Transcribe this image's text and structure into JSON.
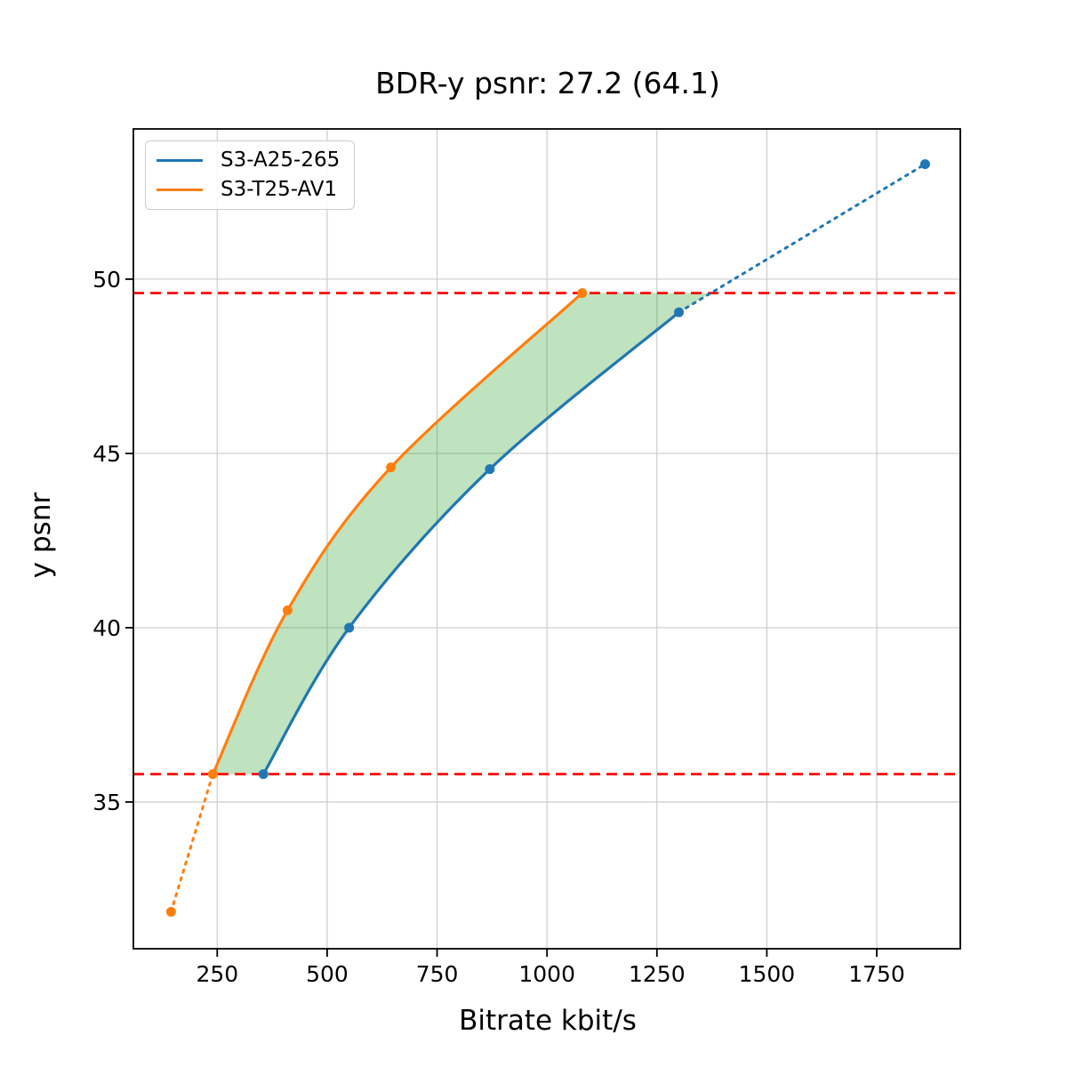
{
  "title": "BDR-y psnr: 27.2 (64.1)",
  "axes": {
    "xlabel": "Bitrate kbit/s",
    "ylabel": "y psnr"
  },
  "legend": {
    "position": "upper left",
    "items": [
      {
        "label": "S3-A25-265",
        "color": "#1f77b4"
      },
      {
        "label": "S3-T25-AV1",
        "color": "#ff7f0e"
      }
    ]
  },
  "chart_data": {
    "type": "line",
    "title": "BDR-y psnr: 27.2 (64.1)",
    "xlabel": "Bitrate kbit/s",
    "ylabel": "y psnr",
    "xlim": [
      59.3,
      1940
    ],
    "ylim": [
      30.79,
      54.31
    ],
    "xticks": [
      250,
      500,
      750,
      1000,
      1250,
      1500,
      1750
    ],
    "yticks": [
      35,
      40,
      45,
      50
    ],
    "grid": true,
    "grid_color": "#cccccc",
    "spine_color": "#000000",
    "legend_position": "upper left",
    "series": [
      {
        "name": "S3-A25-265",
        "color": "#1f77b4",
        "x": [
          355,
          550,
          870,
          1300,
          1860
        ],
        "y": [
          35.8,
          40.0,
          44.55,
          49.05,
          53.3
        ],
        "solid_idx": [
          0,
          3
        ],
        "dotted_idx": [
          [
            3,
            4
          ]
        ],
        "marker": "circle"
      },
      {
        "name": "S3-T25-AV1",
        "color": "#ff7f0e",
        "x": [
          145,
          240,
          410,
          645,
          1080
        ],
        "y": [
          31.85,
          35.8,
          40.5,
          44.6,
          49.6
        ],
        "solid_idx": [
          1,
          4
        ],
        "dotted_idx": [
          [
            0,
            1
          ]
        ],
        "marker": "circle"
      }
    ],
    "hlines": [
      {
        "y": 35.8,
        "color": "#ff0000",
        "style": "dashed"
      },
      {
        "y": 49.6,
        "color": "#ff0000",
        "style": "dashed"
      }
    ],
    "shaded_region": {
      "description": "BD-rate area between the two curves",
      "color": "#2ca02c",
      "opacity": 0.3,
      "y_from": 35.8,
      "y_to": 49.6,
      "left_series": "S3-T25-AV1",
      "right_series": "S3-A25-265"
    }
  }
}
